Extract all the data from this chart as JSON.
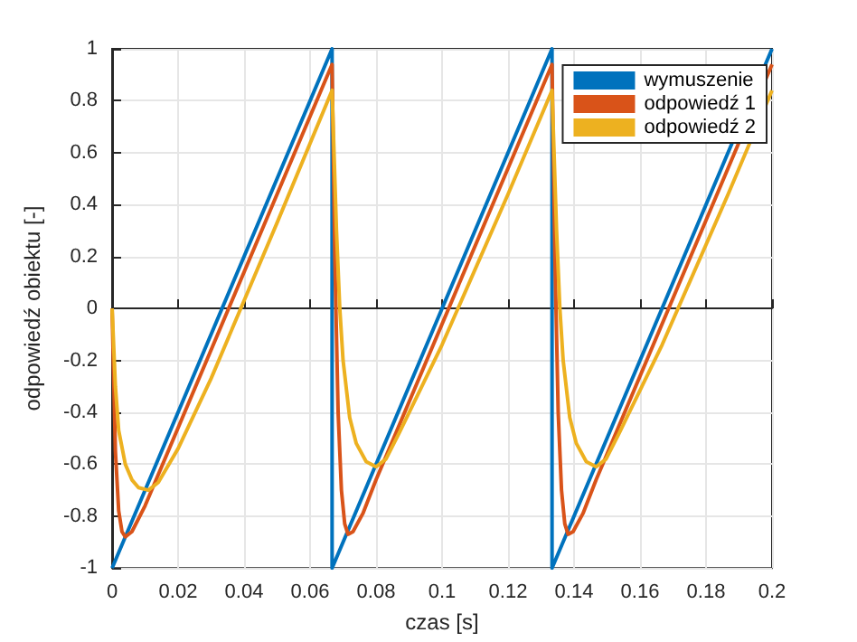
{
  "chart_data": {
    "type": "line",
    "xlabel": "czas [s]",
    "ylabel": "odpowiedź obiektu [-]",
    "xlim": [
      0,
      0.2
    ],
    "ylim": [
      -1,
      1
    ],
    "xticks": [
      0,
      0.02,
      0.04,
      0.06,
      0.08,
      0.1,
      0.12,
      0.14,
      0.16,
      0.18,
      0.2
    ],
    "yticks": [
      -1,
      -0.8,
      -0.6,
      -0.4,
      -0.2,
      0,
      0.2,
      0.4,
      0.6,
      0.8,
      1
    ],
    "grid": true,
    "legend": "top right",
    "series": [
      {
        "name": "wymuszenie",
        "color": "#0072bd",
        "x": [
          0,
          0.06667,
          0.06667,
          0.13333,
          0.13333,
          0.2
        ],
        "values": [
          -1,
          1,
          -1,
          1,
          -1,
          1
        ]
      },
      {
        "name": "odpowiedź 1",
        "color": "#d95319",
        "x": [
          0,
          0.001,
          0.002,
          0.003,
          0.004,
          0.006,
          0.01,
          0.06667,
          0.0675,
          0.0685,
          0.0695,
          0.0705,
          0.0715,
          0.073,
          0.076,
          0.08,
          0.13333,
          0.1342,
          0.1352,
          0.1362,
          0.1372,
          0.1382,
          0.1397,
          0.1427,
          0.1467,
          0.2
        ],
        "values": [
          0,
          -0.55,
          -0.78,
          -0.86,
          -0.88,
          -0.86,
          -0.76,
          0.94,
          0.2,
          -0.4,
          -0.7,
          -0.83,
          -0.87,
          -0.86,
          -0.79,
          -0.66,
          0.94,
          0.2,
          -0.4,
          -0.7,
          -0.83,
          -0.87,
          -0.86,
          -0.79,
          -0.66,
          0.94
        ]
      },
      {
        "name": "odpowiedź 2",
        "color": "#edb120",
        "x": [
          0,
          0.001,
          0.002,
          0.004,
          0.006,
          0.008,
          0.011,
          0.014,
          0.02,
          0.03,
          0.04,
          0.05,
          0.06667,
          0.068,
          0.069,
          0.07,
          0.072,
          0.074,
          0.077,
          0.08,
          0.083,
          0.087,
          0.1,
          0.12,
          0.13333,
          0.1347,
          0.1357,
          0.1367,
          0.1387,
          0.1407,
          0.1437,
          0.1467,
          0.1497,
          0.1537,
          0.1667,
          0.1867,
          0.2
        ],
        "values": [
          0,
          -0.3,
          -0.47,
          -0.6,
          -0.66,
          -0.69,
          -0.7,
          -0.67,
          -0.54,
          -0.27,
          0.03,
          0.33,
          0.84,
          0.3,
          0,
          -0.2,
          -0.42,
          -0.52,
          -0.59,
          -0.61,
          -0.58,
          -0.48,
          -0.14,
          0.44,
          0.84,
          0.3,
          0,
          -0.2,
          -0.42,
          -0.52,
          -0.59,
          -0.61,
          -0.58,
          -0.48,
          -0.14,
          0.44,
          0.84
        ]
      }
    ]
  }
}
